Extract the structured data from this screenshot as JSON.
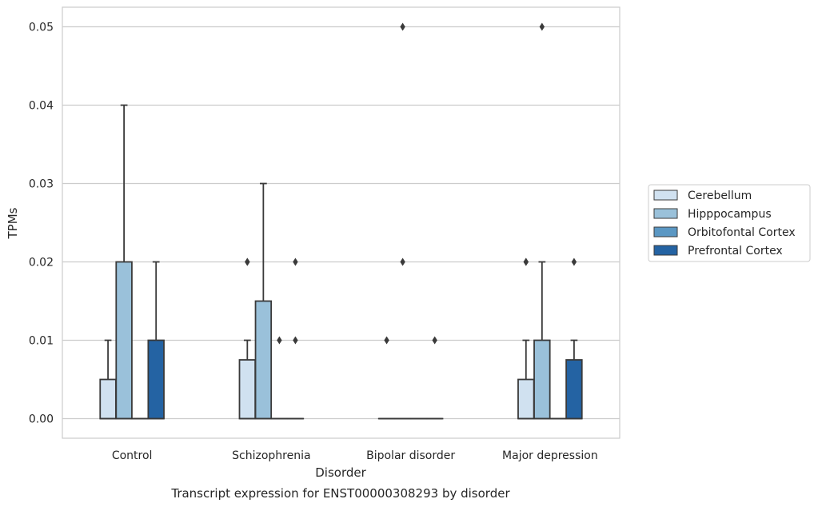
{
  "chart_data": {
    "type": "box",
    "title": "",
    "caption": "Transcript expression for ENST00000308293 by disorder",
    "xlabel": "Disorder",
    "ylabel": "TPMs",
    "ylim": [
      -0.0025,
      0.0525
    ],
    "yticks": [
      "0.00",
      "0.01",
      "0.02",
      "0.03",
      "0.04",
      "0.05"
    ],
    "ytick_values": [
      0,
      0.01,
      0.02,
      0.03,
      0.04,
      0.05
    ],
    "grid": "horizontal",
    "legend_position": "right",
    "categories": [
      "Control",
      "Schizophrenia",
      "Bipolar disorder",
      "Major depression"
    ],
    "series": [
      {
        "name": "Cerebellum",
        "color": "#d0e1f0",
        "boxes": [
          {
            "q1": 0,
            "median": 0,
            "q3": 0.005,
            "whisker_low": 0,
            "whisker_high": 0.01,
            "outliers": []
          },
          {
            "q1": 0,
            "median": 0,
            "q3": 0.0075,
            "whisker_low": 0,
            "whisker_high": 0.01,
            "outliers": [
              0.02,
              0.02
            ]
          },
          {
            "q1": 0,
            "median": 0,
            "q3": 0,
            "whisker_low": 0,
            "whisker_high": 0,
            "outliers": [
              0.01
            ]
          },
          {
            "q1": 0,
            "median": 0,
            "q3": 0.005,
            "whisker_low": 0,
            "whisker_high": 0.01,
            "outliers": [
              0.02,
              0.02
            ]
          }
        ]
      },
      {
        "name": "Hipppocampus",
        "color": "#9ac1da",
        "boxes": [
          {
            "q1": 0,
            "median": 0,
            "q3": 0.02,
            "whisker_low": 0,
            "whisker_high": 0.04,
            "outliers": []
          },
          {
            "q1": 0,
            "median": 0,
            "q3": 0.015,
            "whisker_low": 0,
            "whisker_high": 0.03,
            "outliers": []
          },
          {
            "q1": 0,
            "median": 0,
            "q3": 0,
            "whisker_low": 0,
            "whisker_high": 0,
            "outliers": [
              0.05,
              0.02
            ]
          },
          {
            "q1": 0,
            "median": 0,
            "q3": 0.01,
            "whisker_low": 0,
            "whisker_high": 0.02,
            "outliers": [
              0.05
            ]
          }
        ]
      },
      {
        "name": "Orbitofontal Cortex",
        "color": "#5a97c3",
        "boxes": [
          {
            "q1": 0,
            "median": 0,
            "q3": 0,
            "whisker_low": 0,
            "whisker_high": 0,
            "outliers": []
          },
          {
            "q1": 0,
            "median": 0,
            "q3": 0,
            "whisker_low": 0,
            "whisker_high": 0,
            "outliers": [
              0.01
            ]
          },
          {
            "q1": 0,
            "median": 0,
            "q3": 0,
            "whisker_low": 0,
            "whisker_high": 0,
            "outliers": []
          },
          {
            "q1": 0,
            "median": 0,
            "q3": 0,
            "whisker_low": 0,
            "whisker_high": 0,
            "outliers": []
          }
        ]
      },
      {
        "name": "Prefrontal Cortex",
        "color": "#2463a3",
        "boxes": [
          {
            "q1": 0,
            "median": 0,
            "q3": 0.01,
            "whisker_low": 0,
            "whisker_high": 0.02,
            "outliers": []
          },
          {
            "q1": 0,
            "median": 0,
            "q3": 0,
            "whisker_low": 0,
            "whisker_high": 0,
            "outliers": [
              0.02,
              0.01
            ]
          },
          {
            "q1": 0,
            "median": 0,
            "q3": 0,
            "whisker_low": 0,
            "whisker_high": 0,
            "outliers": [
              0.01
            ]
          },
          {
            "q1": 0,
            "median": 0,
            "q3": 0.0075,
            "whisker_low": 0,
            "whisker_high": 0.01,
            "outliers": [
              0.02
            ]
          }
        ]
      }
    ]
  }
}
